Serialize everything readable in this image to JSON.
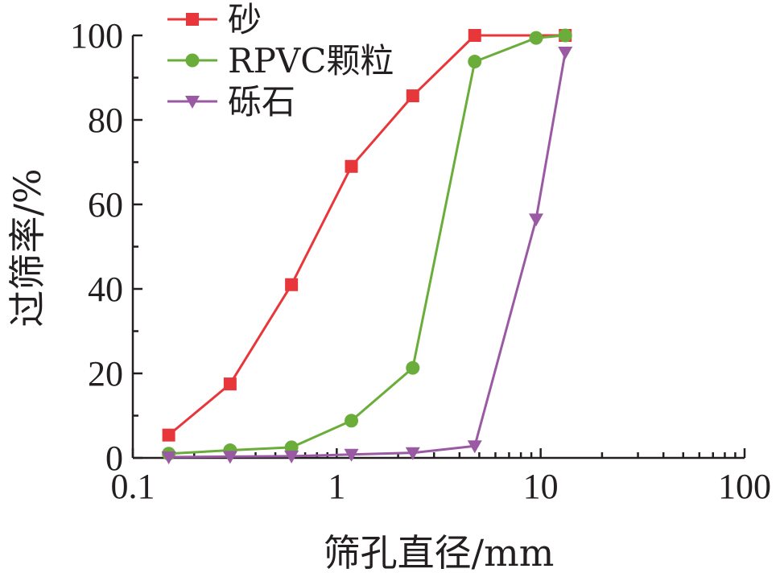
{
  "chart_data": {
    "type": "line",
    "xscale": "log",
    "xlim": [
      0.1,
      100
    ],
    "ylim": [
      0,
      100
    ],
    "xlabel": "筛孔直径/mm",
    "ylabel": "过筛率/%",
    "xticks": [
      "0.1",
      "1",
      "10",
      "100"
    ],
    "yticks": [
      "0",
      "20",
      "40",
      "60",
      "80",
      "100"
    ],
    "legend": "top-left",
    "grid": false,
    "series": [
      {
        "name": "砂",
        "color": "#e8373a",
        "marker": "square",
        "x": [
          0.15,
          0.3,
          0.6,
          1.18,
          2.36,
          4.75,
          13.2
        ],
        "y": [
          5.4,
          17.5,
          41,
          69,
          85.7,
          100,
          100
        ]
      },
      {
        "name": "RPVC颗粒",
        "color": "#6aad3a",
        "marker": "circle",
        "x": [
          0.15,
          0.3,
          0.6,
          1.18,
          2.36,
          4.75,
          9.5,
          13.2
        ],
        "y": [
          1,
          1.8,
          2.5,
          8.8,
          21.3,
          93.8,
          99.4,
          100
        ]
      },
      {
        "name": "砾石",
        "color": "#9a5aa3",
        "marker": "triangle-down",
        "x": [
          0.15,
          0.3,
          0.6,
          1.18,
          2.36,
          4.75,
          9.5,
          13.2
        ],
        "y": [
          0.2,
          0.3,
          0.4,
          0.8,
          1.2,
          2.8,
          56.5,
          96
        ]
      }
    ]
  }
}
